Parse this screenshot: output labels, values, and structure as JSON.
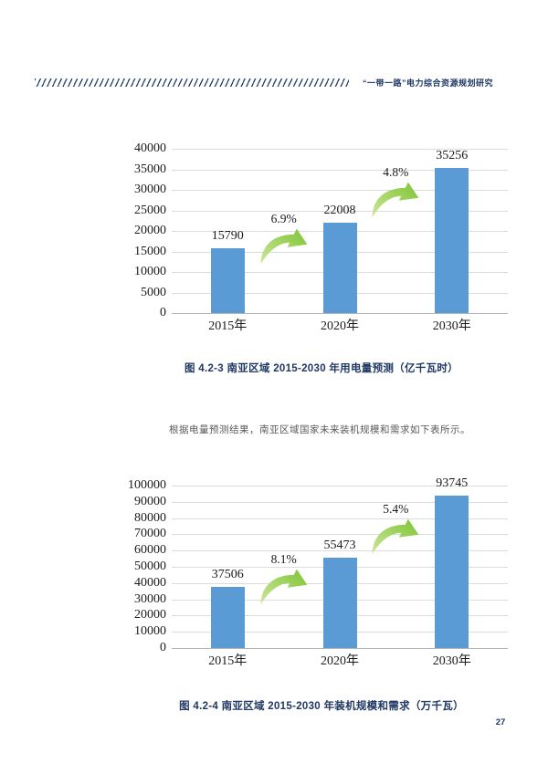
{
  "header": {
    "running_head": "“一带一路”电力综合资源规划研究"
  },
  "body_text": "根据电量预测结果，南亚区域国家未来装机规模和需求如下表所示。",
  "footer": {
    "page_number": "27"
  },
  "colors": {
    "bar_blue": "#5B9BD5",
    "arrow_green_light": "#CDE699",
    "arrow_green_dark": "#7CC433",
    "navy": "#1F3864",
    "body_gray": "#595959",
    "gridline": "#DCDCDC",
    "axis_line": "#B5B5B5",
    "chart_text": "#1A1A1A"
  },
  "chart_data": [
    {
      "type": "bar",
      "title": "图 4.2-3 南亚区域 2015-2030 年用电量预测（亿千瓦时）",
      "categories": [
        "2015年",
        "2020年",
        "2030年"
      ],
      "values": [
        15790,
        22008,
        35256
      ],
      "growth_labels": [
        "6.9%",
        "4.8%"
      ],
      "ylim": [
        0,
        40000
      ],
      "ytick_step": 5000,
      "grid": true,
      "legend": false,
      "bar_color": "#5B9BD5"
    },
    {
      "type": "bar",
      "title": "图 4.2-4 南亚区域 2015-2030 年装机规模和需求（万千瓦）",
      "categories": [
        "2015年",
        "2020年",
        "2030年"
      ],
      "values": [
        37506,
        55473,
        93745
      ],
      "growth_labels": [
        "8.1%",
        "5.4%"
      ],
      "ylim": [
        0,
        100000
      ],
      "ytick_step": 10000,
      "grid": true,
      "legend": false,
      "bar_color": "#5B9BD5"
    }
  ]
}
